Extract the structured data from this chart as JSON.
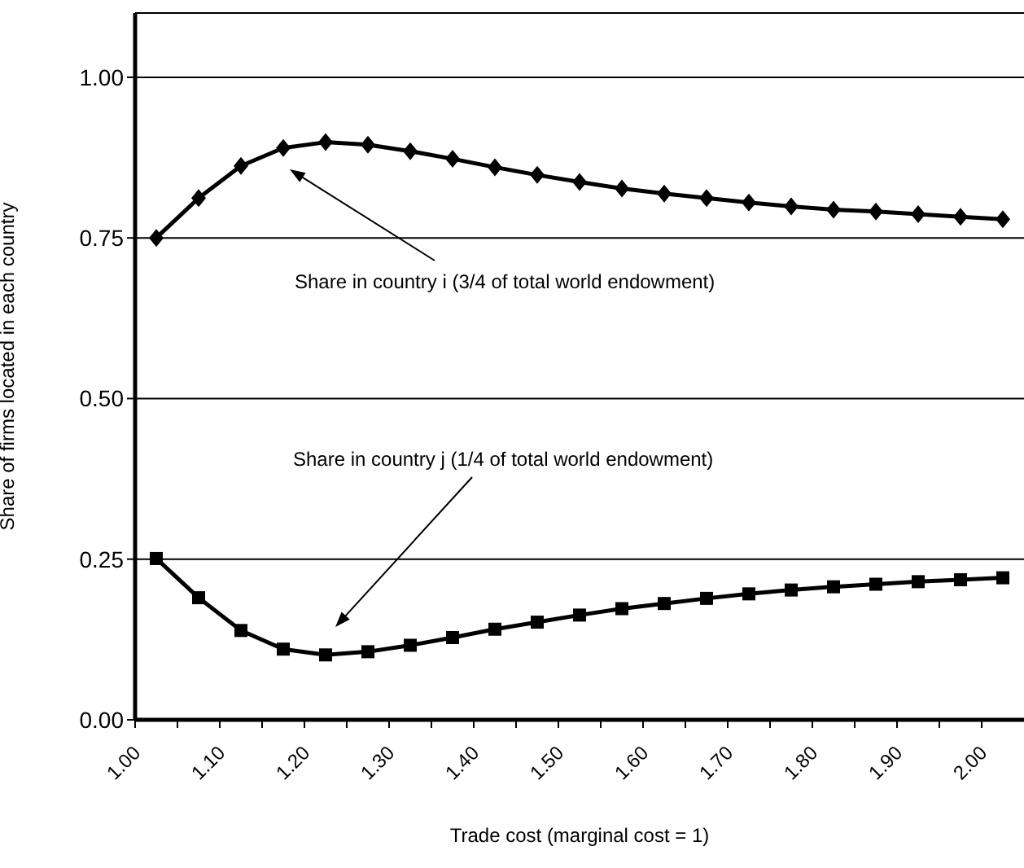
{
  "chart_data": {
    "type": "line",
    "xlabel": "Trade cost  (marginal cost = 1)",
    "ylabel": "Share of firms located in each country",
    "x": [
      1.025,
      1.075,
      1.125,
      1.175,
      1.225,
      1.275,
      1.325,
      1.375,
      1.425,
      1.475,
      1.525,
      1.575,
      1.625,
      1.675,
      1.725,
      1.775,
      1.825,
      1.875,
      1.925,
      1.975,
      2.025
    ],
    "series": [
      {
        "color": "#000000",
        "marker": "diamond",
        "values": [
          0.75,
          0.812,
          0.862,
          0.89,
          0.899,
          0.895,
          0.885,
          0.873,
          0.86,
          0.848,
          0.837,
          0.827,
          0.819,
          0.812,
          0.805,
          0.799,
          0.794,
          0.791,
          0.787,
          0.783,
          0.779
        ]
      },
      {
        "color": "#000000",
        "marker": "square",
        "values": [
          0.251,
          0.19,
          0.139,
          0.11,
          0.101,
          0.106,
          0.116,
          0.128,
          0.141,
          0.152,
          0.163,
          0.173,
          0.181,
          0.189,
          0.196,
          0.202,
          0.207,
          0.211,
          0.215,
          0.218,
          0.221
        ]
      }
    ],
    "annotations": [
      "Share in country i (3/4 of total world endowment)",
      "Share in country j (1/4 of total world endowment)"
    ],
    "xlim": [
      1,
      2.05
    ],
    "xticks": [
      {
        "value": 1,
        "label": "1.00"
      },
      {
        "value": 1.05,
        "label": null
      },
      {
        "value": 1.1,
        "label": "1.10"
      },
      {
        "value": 1.15,
        "label": null
      },
      {
        "value": 1.2,
        "label": "1.20"
      },
      {
        "value": 1.25,
        "label": null
      },
      {
        "value": 1.3,
        "label": "1.30"
      },
      {
        "value": 1.35,
        "label": null
      },
      {
        "value": 1.4,
        "label": "1.40"
      },
      {
        "value": 1.45,
        "label": null
      },
      {
        "value": 1.5,
        "label": "1.50"
      },
      {
        "value": 1.55,
        "label": null
      },
      {
        "value": 1.6,
        "label": "1.60"
      },
      {
        "value": 1.65,
        "label": null
      },
      {
        "value": 1.7,
        "label": "1.70"
      },
      {
        "value": 1.75,
        "label": null
      },
      {
        "value": 1.8,
        "label": "1.80"
      },
      {
        "value": 1.85,
        "label": null
      },
      {
        "value": 1.9,
        "label": "1.90"
      },
      {
        "value": 1.95,
        "label": null
      },
      {
        "value": 2,
        "label": "2.00"
      }
    ],
    "ylim": [
      0,
      1.1
    ],
    "yticks": [
      {
        "value": 0,
        "label": "0.00"
      },
      {
        "value": 0.25,
        "label": "0.25"
      },
      {
        "value": 0.5,
        "label": "0.50"
      },
      {
        "value": 0.75,
        "label": "0.75"
      },
      {
        "value": 1,
        "label": "1.00"
      }
    ],
    "grid": "y",
    "legend": false,
    "line_style": "solid"
  }
}
